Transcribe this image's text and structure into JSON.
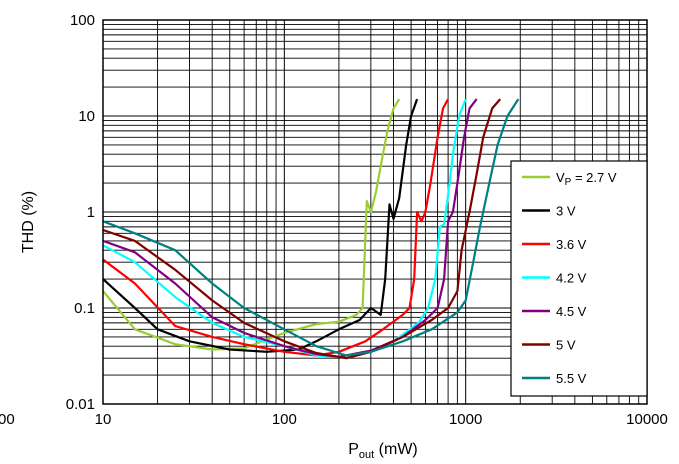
{
  "chart_data": {
    "type": "line",
    "xscale": "log",
    "yscale": "log",
    "xlim": [
      10,
      10000
    ],
    "ylim": [
      0.01,
      100
    ],
    "xlabel": "P",
    "xlabel_sub": "out",
    "xlabel_unit": " (mW)",
    "ylabel": "THD (%)",
    "x_ticks": [
      {
        "value": 10,
        "label": "10"
      },
      {
        "value": 100,
        "label": "100"
      },
      {
        "value": 1000,
        "label": "1000"
      },
      {
        "value": 10000,
        "label": "10000"
      }
    ],
    "y_ticks": [
      {
        "value": 0.01,
        "label": "0.01"
      },
      {
        "value": 0.1,
        "label": "0.1"
      },
      {
        "value": 1,
        "label": "1"
      },
      {
        "value": 10,
        "label": "10"
      },
      {
        "value": 100,
        "label": "100"
      }
    ],
    "left_edge_label": "00",
    "grid": true,
    "legend_position": "right",
    "legend_first_prefix": "V",
    "legend_first_sub": "P",
    "legend_first_suffix": " = 2.7 V",
    "series": [
      {
        "name": "VP = 2.7 V",
        "color": "#9ACD32",
        "points": [
          [
            10,
            0.15
          ],
          [
            15,
            0.06
          ],
          [
            25,
            0.042
          ],
          [
            40,
            0.037
          ],
          [
            60,
            0.038
          ],
          [
            100,
            0.055
          ],
          [
            150,
            0.068
          ],
          [
            200,
            0.072
          ],
          [
            250,
            0.085
          ],
          [
            270,
            0.1
          ],
          [
            285,
            1.3
          ],
          [
            300,
            1.0
          ],
          [
            320,
            1.6
          ],
          [
            340,
            3.0
          ],
          [
            370,
            7.0
          ],
          [
            400,
            12.0
          ],
          [
            430,
            15.0
          ]
        ]
      },
      {
        "name": "3 V",
        "color": "#000000",
        "points": [
          [
            10,
            0.2
          ],
          [
            15,
            0.1
          ],
          [
            20,
            0.06
          ],
          [
            30,
            0.045
          ],
          [
            50,
            0.037
          ],
          [
            80,
            0.035
          ],
          [
            120,
            0.037
          ],
          [
            150,
            0.045
          ],
          [
            200,
            0.06
          ],
          [
            260,
            0.075
          ],
          [
            300,
            0.1
          ],
          [
            340,
            0.085
          ],
          [
            360,
            0.2
          ],
          [
            380,
            1.2
          ],
          [
            400,
            0.85
          ],
          [
            430,
            1.4
          ],
          [
            470,
            5.0
          ],
          [
            500,
            10.0
          ],
          [
            540,
            15.0
          ]
        ]
      },
      {
        "name": "3.6 V",
        "color": "#FF0000",
        "points": [
          [
            10,
            0.32
          ],
          [
            15,
            0.18
          ],
          [
            25,
            0.065
          ],
          [
            40,
            0.05
          ],
          [
            60,
            0.042
          ],
          [
            100,
            0.035
          ],
          [
            150,
            0.032
          ],
          [
            200,
            0.035
          ],
          [
            280,
            0.045
          ],
          [
            350,
            0.06
          ],
          [
            450,
            0.085
          ],
          [
            490,
            0.1
          ],
          [
            520,
            0.2
          ],
          [
            540,
            1.0
          ],
          [
            570,
            0.8
          ],
          [
            600,
            1.0
          ],
          [
            640,
            2.0
          ],
          [
            700,
            6.0
          ],
          [
            750,
            12.0
          ],
          [
            800,
            15.0
          ]
        ]
      },
      {
        "name": "4.2 V",
        "color": "#00FFFF",
        "points": [
          [
            10,
            0.45
          ],
          [
            15,
            0.3
          ],
          [
            25,
            0.13
          ],
          [
            40,
            0.07
          ],
          [
            60,
            0.05
          ],
          [
            100,
            0.04
          ],
          [
            150,
            0.032
          ],
          [
            200,
            0.031
          ],
          [
            300,
            0.035
          ],
          [
            400,
            0.045
          ],
          [
            550,
            0.07
          ],
          [
            620,
            0.1
          ],
          [
            680,
            0.2
          ],
          [
            720,
            0.7
          ],
          [
            760,
            0.75
          ],
          [
            800,
            1.5
          ],
          [
            850,
            4.0
          ],
          [
            920,
            10.0
          ],
          [
            1000,
            15.0
          ]
        ]
      },
      {
        "name": "4.5 V",
        "color": "#800080",
        "points": [
          [
            10,
            0.5
          ],
          [
            15,
            0.38
          ],
          [
            25,
            0.18
          ],
          [
            40,
            0.08
          ],
          [
            60,
            0.055
          ],
          [
            100,
            0.04
          ],
          [
            150,
            0.033
          ],
          [
            200,
            0.031
          ],
          [
            300,
            0.036
          ],
          [
            450,
            0.05
          ],
          [
            600,
            0.075
          ],
          [
            700,
            0.1
          ],
          [
            760,
            0.2
          ],
          [
            800,
            0.8
          ],
          [
            850,
            1.0
          ],
          [
            900,
            2.0
          ],
          [
            980,
            6.0
          ],
          [
            1050,
            12.0
          ],
          [
            1150,
            15.0
          ]
        ]
      },
      {
        "name": "5 V",
        "color": "#800000",
        "points": [
          [
            10,
            0.65
          ],
          [
            15,
            0.5
          ],
          [
            25,
            0.25
          ],
          [
            40,
            0.12
          ],
          [
            60,
            0.07
          ],
          [
            100,
            0.045
          ],
          [
            150,
            0.034
          ],
          [
            220,
            0.03
          ],
          [
            300,
            0.035
          ],
          [
            450,
            0.05
          ],
          [
            650,
            0.075
          ],
          [
            800,
            0.1
          ],
          [
            900,
            0.15
          ],
          [
            950,
            0.4
          ],
          [
            1050,
            1.0
          ],
          [
            1150,
            2.5
          ],
          [
            1250,
            6.0
          ],
          [
            1400,
            12.0
          ],
          [
            1550,
            15.0
          ]
        ]
      },
      {
        "name": "5.5 V",
        "color": "#008080",
        "points": [
          [
            10,
            0.8
          ],
          [
            15,
            0.6
          ],
          [
            25,
            0.4
          ],
          [
            40,
            0.18
          ],
          [
            60,
            0.1
          ],
          [
            100,
            0.06
          ],
          [
            150,
            0.04
          ],
          [
            220,
            0.032
          ],
          [
            300,
            0.035
          ],
          [
            450,
            0.045
          ],
          [
            650,
            0.06
          ],
          [
            900,
            0.09
          ],
          [
            1000,
            0.12
          ],
          [
            1100,
            0.3
          ],
          [
            1200,
            0.7
          ],
          [
            1350,
            2.0
          ],
          [
            1500,
            5.0
          ],
          [
            1700,
            10.0
          ],
          [
            1950,
            15.0
          ]
        ]
      }
    ]
  }
}
